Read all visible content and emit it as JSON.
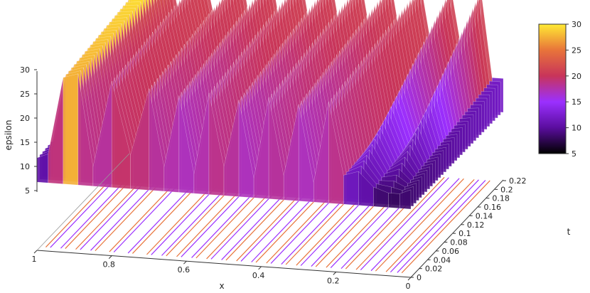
{
  "chart_data": {
    "type": "surface",
    "zlabel": "epsilon",
    "xlabel": "x",
    "ylabel": "t",
    "x_ticks": [
      "1",
      "0.8",
      "0.6",
      "0.4",
      "0.2",
      "0"
    ],
    "t_ticks": [
      "0",
      "0.02",
      "0.04",
      "0.06",
      "0.08",
      "0.1",
      "0.12",
      "0.14",
      "0.16",
      "0.18",
      "0.2",
      "0.22"
    ],
    "z_ticks": [
      "5",
      "10",
      "15",
      "20",
      "25",
      "30"
    ],
    "colorbar_ticks": [
      "5",
      "10",
      "15",
      "20",
      "25",
      "30"
    ],
    "xlim": [
      1,
      0
    ],
    "tlim": [
      0,
      0.22
    ],
    "zlim": [
      5,
      30
    ],
    "colorbar_range": [
      5,
      30
    ],
    "palette": [
      "#1a0033",
      "#6a0dad",
      "#9b30ff",
      "#c8345a",
      "#e8743a",
      "#ffe840"
    ],
    "front_profile_x": [
      1.0,
      0.97,
      0.93,
      0.89,
      0.85,
      0.8,
      0.75,
      0.7,
      0.66,
      0.62,
      0.58,
      0.54,
      0.5,
      0.46,
      0.42,
      0.38,
      0.34,
      0.3,
      0.26,
      0.22,
      0.18,
      0.14,
      0.1,
      0.06,
      0.03,
      0.0
    ],
    "front_profile_epsilon": [
      10,
      11,
      27,
      28,
      9,
      27,
      12,
      26,
      10,
      25,
      9,
      26,
      11,
      25,
      9,
      26,
      10,
      25,
      9,
      26,
      11,
      12,
      9,
      8,
      8,
      9
    ],
    "back_profile_epsilon": [
      12,
      13,
      30,
      30,
      12,
      30,
      12,
      30,
      12,
      30,
      12,
      30,
      12,
      30,
      12,
      30,
      12,
      30,
      12,
      30,
      12,
      30,
      12,
      30,
      12,
      12
    ]
  }
}
